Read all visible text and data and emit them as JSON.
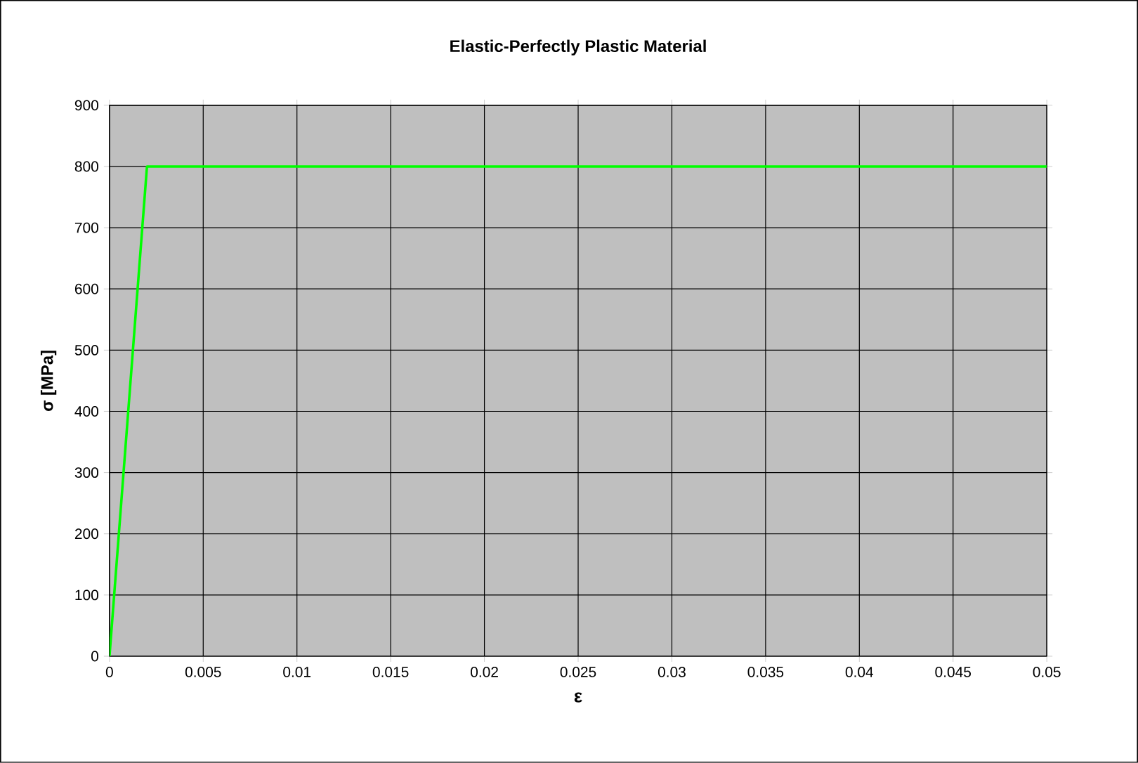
{
  "chart_data": {
    "type": "line",
    "title": "Elastic-Perfectly Plastic Material",
    "xlabel": "ε",
    "ylabel": "σ [MPa]",
    "x": [
      0,
      0.002,
      0.05
    ],
    "series": [
      {
        "color": "#00ff00",
        "values": [
          0,
          800,
          800
        ]
      }
    ],
    "xlim": [
      0,
      0.05
    ],
    "ylim": [
      0,
      900
    ],
    "xticks": [
      0,
      0.005,
      0.01,
      0.015,
      0.02,
      0.025,
      0.03,
      0.035,
      0.04,
      0.045,
      0.05
    ],
    "yticks": [
      0,
      100,
      200,
      300,
      400,
      500,
      600,
      700,
      800,
      900
    ],
    "grid": true,
    "marker": "none",
    "line_style": "solid"
  }
}
